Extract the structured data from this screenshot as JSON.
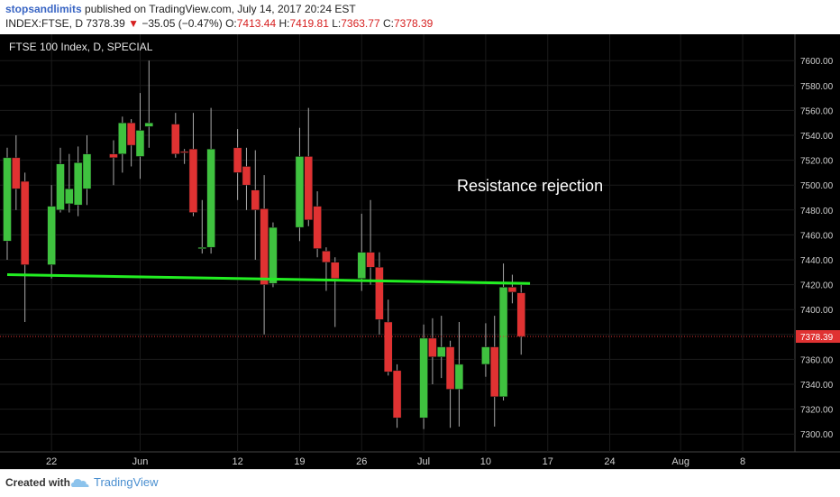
{
  "header": {
    "author": "stopsandlimits",
    "published_text": "published on TradingView.com, July 14, 2017 20:24 EST",
    "symbol": "INDEX:FTSE, D",
    "last": "7378.39",
    "change": "−35.05 (−0.47%)",
    "o_label": "O:",
    "o_value": "7413.44",
    "h_label": "H:",
    "h_value": "7419.81",
    "l_label": "L:",
    "l_value": "7363.77",
    "c_label": "C:",
    "c_value": "7378.39"
  },
  "footer": {
    "created_with": "Created with",
    "brand": "TradingView"
  },
  "colors": {
    "background": "#000000",
    "up": "#3fc23f",
    "down": "#e03232",
    "trendline": "#22ee22",
    "price_line": "#e03232",
    "grid": "#1b1b1b",
    "axis_text": "#cfcfcf"
  },
  "chart_data": {
    "type": "candlestick",
    "title": "FTSE 100 Index, D, SPECIAL",
    "annotation": "Resistance rejection",
    "ylim": [
      7290,
      7610
    ],
    "y_ticks": [
      7300,
      7320,
      7340,
      7360,
      7380,
      7400,
      7420,
      7440,
      7460,
      7480,
      7500,
      7520,
      7540,
      7560,
      7580,
      7600
    ],
    "y_tick_labels": [
      "7300.00",
      "7320.00",
      "7340.00",
      "7360.00",
      "7380.00",
      "7400.00",
      "7420.00",
      "7440.00",
      "7460.00",
      "7480.00",
      "7500.00",
      "7520.00",
      "7540.00",
      "7560.00",
      "7580.00",
      "7600.00"
    ],
    "x_start": "2017-05-17",
    "x_end": "2017-08-14",
    "x_ticks": [
      {
        "date": "2017-05-22",
        "label": "22"
      },
      {
        "date": "2017-06-01",
        "label": "Jun"
      },
      {
        "date": "2017-06-12",
        "label": "12"
      },
      {
        "date": "2017-06-19",
        "label": "19"
      },
      {
        "date": "2017-06-26",
        "label": "26"
      },
      {
        "date": "2017-07-03",
        "label": "Jul"
      },
      {
        "date": "2017-07-10",
        "label": "10"
      },
      {
        "date": "2017-07-17",
        "label": "17"
      },
      {
        "date": "2017-07-24",
        "label": "24"
      },
      {
        "date": "2017-08-01",
        "label": "Aug"
      },
      {
        "date": "2017-08-08",
        "label": "8"
      }
    ],
    "last_price": 7378.39,
    "last_price_label": "7378.39",
    "trendline": [
      {
        "date": "2017-05-17",
        "value": 7428
      },
      {
        "date": "2017-07-15",
        "value": 7421
      }
    ],
    "candles": [
      {
        "date": "2017-05-17",
        "open": 7455,
        "high": 7530,
        "low": 7440,
        "close": 7522
      },
      {
        "date": "2017-05-18",
        "open": 7522,
        "high": 7540,
        "low": 7480,
        "close": 7497
      },
      {
        "date": "2017-05-19",
        "open": 7503,
        "high": 7510,
        "low": 7390,
        "close": 7436
      },
      {
        "date": "2017-05-22",
        "open": 7436,
        "high": 7500,
        "low": 7425,
        "close": 7483
      },
      {
        "date": "2017-05-23",
        "open": 7480,
        "high": 7530,
        "low": 7478,
        "close": 7517
      },
      {
        "date": "2017-05-24",
        "open": 7485,
        "high": 7525,
        "low": 7478,
        "close": 7497
      },
      {
        "date": "2017-05-25",
        "open": 7484,
        "high": 7531,
        "low": 7475,
        "close": 7518
      },
      {
        "date": "2017-05-26",
        "open": 7497,
        "high": 7540,
        "low": 7484,
        "close": 7525
      },
      {
        "date": "2017-05-29",
        "open": 7525,
        "high": 7536,
        "low": 7500,
        "close": 7522
      },
      {
        "date": "2017-05-30",
        "open": 7525,
        "high": 7555,
        "low": 7510,
        "close": 7550
      },
      {
        "date": "2017-05-31",
        "open": 7550,
        "high": 7553,
        "low": 7515,
        "close": 7532
      },
      {
        "date": "2017-06-01",
        "open": 7523,
        "high": 7574,
        "low": 7505,
        "close": 7544
      },
      {
        "date": "2017-06-02",
        "open": 7547,
        "high": 7600,
        "low": 7530,
        "close": 7550
      },
      {
        "date": "2017-06-05",
        "open": 7549,
        "high": 7558,
        "low": 7522,
        "close": 7525
      },
      {
        "date": "2017-06-06",
        "open": 7527,
        "high": 7529,
        "low": 7517,
        "close": 7526
      },
      {
        "date": "2017-06-07",
        "open": 7529,
        "high": 7558,
        "low": 7475,
        "close": 7478
      },
      {
        "date": "2017-06-08",
        "open": 7450,
        "high": 7488,
        "low": 7445,
        "close": 7450
      },
      {
        "date": "2017-06-09",
        "open": 7450,
        "high": 7562,
        "low": 7445,
        "close": 7529
      },
      {
        "date": "2017-06-12",
        "open": 7530,
        "high": 7545,
        "low": 7488,
        "close": 7510
      },
      {
        "date": "2017-06-13",
        "open": 7515,
        "high": 7530,
        "low": 7480,
        "close": 7500
      },
      {
        "date": "2017-06-14",
        "open": 7496,
        "high": 7528,
        "low": 7440,
        "close": 7480
      },
      {
        "date": "2017-06-15",
        "open": 7481,
        "high": 7508,
        "low": 7380,
        "close": 7420
      },
      {
        "date": "2017-06-16",
        "open": 7421,
        "high": 7470,
        "low": 7418,
        "close": 7466
      },
      {
        "date": "2017-06-19",
        "open": 7466,
        "high": 7546,
        "low": 7455,
        "close": 7523
      },
      {
        "date": "2017-06-20",
        "open": 7523,
        "high": 7562,
        "low": 7467,
        "close": 7472
      },
      {
        "date": "2017-06-21",
        "open": 7483,
        "high": 7495,
        "low": 7442,
        "close": 7449
      },
      {
        "date": "2017-06-22",
        "open": 7447,
        "high": 7450,
        "low": 7415,
        "close": 7438
      },
      {
        "date": "2017-06-23",
        "open": 7438,
        "high": 7442,
        "low": 7386,
        "close": 7425
      },
      {
        "date": "2017-06-26",
        "open": 7425,
        "high": 7477,
        "low": 7415,
        "close": 7446
      },
      {
        "date": "2017-06-27",
        "open": 7446,
        "high": 7488,
        "low": 7420,
        "close": 7434
      },
      {
        "date": "2017-06-28",
        "open": 7434,
        "high": 7446,
        "low": 7380,
        "close": 7392
      },
      {
        "date": "2017-06-29",
        "open": 7390,
        "high": 7408,
        "low": 7347,
        "close": 7350
      },
      {
        "date": "2017-06-30",
        "open": 7351,
        "high": 7356,
        "low": 7305,
        "close": 7313
      },
      {
        "date": "2017-07-03",
        "open": 7313,
        "high": 7388,
        "low": 7304,
        "close": 7377
      },
      {
        "date": "2017-07-04",
        "open": 7377,
        "high": 7393,
        "low": 7340,
        "close": 7362
      },
      {
        "date": "2017-07-05",
        "open": 7362,
        "high": 7395,
        "low": 7345,
        "close": 7370
      },
      {
        "date": "2017-07-06",
        "open": 7370,
        "high": 7375,
        "low": 7305,
        "close": 7336
      },
      {
        "date": "2017-07-07",
        "open": 7336,
        "high": 7390,
        "low": 7306,
        "close": 7356
      },
      {
        "date": "2017-07-10",
        "open": 7356,
        "high": 7389,
        "low": 7346,
        "close": 7370
      },
      {
        "date": "2017-07-11",
        "open": 7370,
        "high": 7395,
        "low": 7306,
        "close": 7330
      },
      {
        "date": "2017-07-12",
        "open": 7330,
        "high": 7437,
        "low": 7327,
        "close": 7418
      },
      {
        "date": "2017-07-13",
        "open": 7418,
        "high": 7428,
        "low": 7405,
        "close": 7414
      },
      {
        "date": "2017-07-14",
        "open": 7413.44,
        "high": 7419.81,
        "low": 7363.77,
        "close": 7378.39
      }
    ]
  }
}
